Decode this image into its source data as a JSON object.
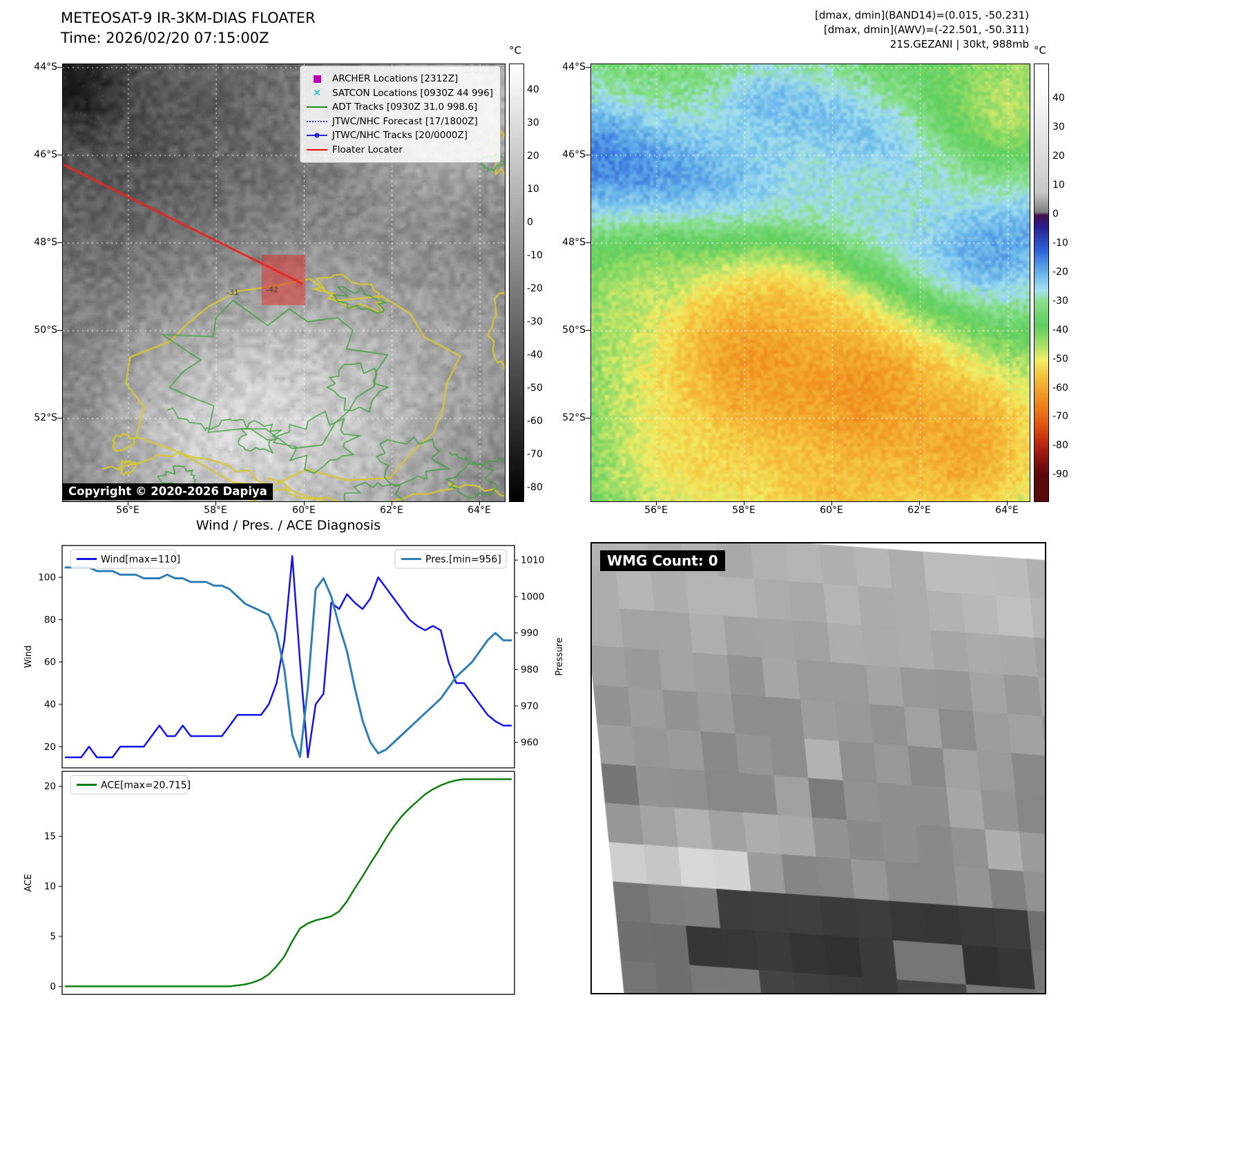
{
  "floater_panel": {
    "title": "METEOSAT-9 IR-3KM-DIAS FLOATER",
    "time_line": "Time: 2026/02/20 07:15:00Z",
    "watermark": "2026",
    "copyright": "Copyright © 2020-2026 Dapiya",
    "colorbar_unit": "°C",
    "colorbar_ticks": [
      40,
      30,
      20,
      10,
      0,
      -10,
      -20,
      -30,
      -40,
      -50,
      -60,
      -70,
      -80
    ],
    "lat_ticks": [
      "44°S",
      "46°S",
      "48°S",
      "50°S",
      "52°S"
    ],
    "lon_ticks": [
      "56°E",
      "58°E",
      "60°E",
      "62°E",
      "64°E"
    ],
    "contour_labels": [
      {
        "text": "-31"
      },
      {
        "text": "-42"
      }
    ],
    "legend_items": [
      {
        "label": "ARCHER Locations [2312Z]",
        "marker": "square",
        "color": "#bf00bf"
      },
      {
        "label": "SATCON Locations [0930Z 44 996]",
        "marker": "x",
        "color": "#00b4c8"
      },
      {
        "label": "ADT Tracks [0930Z 31.0 998.6]",
        "marker": "line",
        "color": "#1c8c1c"
      },
      {
        "label": "JTWC/NHC Forecast [17/1800Z]",
        "marker": "dotted",
        "color": "#2424ff"
      },
      {
        "label": "JTWC/NHC Tracks [20/0000Z]",
        "marker": "line-dot",
        "color": "#2424dd"
      },
      {
        "label": "Floater Locater",
        "marker": "line",
        "color": "#ff0000"
      }
    ]
  },
  "enhanced_panel": {
    "info_lines": [
      "[dmax, dmin](BAND14)=(0.015, -50.231)",
      "[dmax, dmin](AWV)=(-22.501, -50.311)",
      "21S.GEZANI | 30kt, 988mb"
    ],
    "colorbar_unit": "°C",
    "colorbar_ticks": [
      40,
      30,
      20,
      10,
      0,
      -10,
      -20,
      -30,
      -40,
      -50,
      -60,
      -70,
      -80,
      -90
    ],
    "lat_ticks": [
      "44°S",
      "46°S",
      "48°S",
      "50°S",
      "52°S"
    ],
    "lon_ticks": [
      "56°E",
      "58°E",
      "60°E",
      "62°E",
      "64°E"
    ]
  },
  "wmg_panel": {
    "count_label": "WMG Count: 0"
  },
  "chart_data": {
    "title": "Wind / Pres. / ACE Diagnosis",
    "charts": [
      {
        "type": "line",
        "xlabel": "",
        "ylabel_left": "Wind",
        "ylabel_right": "Pressure",
        "ylim_left": [
          10,
          115
        ],
        "ylim_right": [
          953,
          1014
        ],
        "yticks_left": [
          20,
          40,
          60,
          80,
          100
        ],
        "yticks_right": [
          960,
          970,
          980,
          990,
          1000,
          1010
        ],
        "series": [
          {
            "name": "Wind[max=110]",
            "axis": "left",
            "color": "#1414e6",
            "legend_pos": "tl",
            "values": [
              15,
              15,
              15,
              20,
              15,
              15,
              15,
              20,
              20,
              20,
              20,
              25,
              30,
              25,
              25,
              30,
              25,
              25,
              25,
              25,
              25,
              30,
              35,
              35,
              35,
              35,
              40,
              50,
              70,
              110,
              60,
              15,
              40,
              45,
              88,
              85,
              92,
              88,
              85,
              90,
              100,
              95,
              90,
              85,
              80,
              77,
              75,
              77,
              75,
              60,
              50,
              50,
              45,
              40,
              35,
              32,
              30,
              30
            ]
          },
          {
            "name": "Pres.[min=956]",
            "axis": "right",
            "color": "#2e7fb5",
            "legend_pos": "tr",
            "values": [
              1008,
              1008,
              1008,
              1008,
              1007,
              1007,
              1007,
              1006,
              1006,
              1006,
              1005,
              1005,
              1005,
              1006,
              1005,
              1005,
              1004,
              1004,
              1004,
              1003,
              1003,
              1002,
              1000,
              998,
              997,
              996,
              995,
              990,
              980,
              962,
              956,
              975,
              1002,
              1005,
              1000,
              992,
              985,
              975,
              966,
              960,
              957,
              958,
              960,
              962,
              964,
              966,
              968,
              970,
              972,
              975,
              978,
              980,
              982,
              985,
              988,
              990,
              988,
              988
            ]
          }
        ]
      },
      {
        "type": "line",
        "xlabel": "",
        "ylabel_left": "ACE",
        "ylim_left": [
          -0.8,
          21.5
        ],
        "yticks_left": [
          0,
          5,
          10,
          15,
          20
        ],
        "series": [
          {
            "name": "ACE[max=20.715]",
            "axis": "left",
            "color": "#107f10",
            "legend_pos": "tl",
            "values": [
              0,
              0,
              0,
              0,
              0,
              0,
              0,
              0,
              0,
              0,
              0,
              0,
              0,
              0,
              0,
              0,
              0,
              0,
              0,
              0,
              0,
              0,
              0.1,
              0.2,
              0.4,
              0.7,
              1.2,
              2,
              3,
              4.5,
              5.8,
              6.3,
              6.6,
              6.8,
              7,
              7.5,
              8.5,
              9.8,
              11,
              12.3,
              13.5,
              14.8,
              16,
              17,
              17.8,
              18.5,
              19.2,
              19.7,
              20.1,
              20.4,
              20.6,
              20.715,
              20.715,
              20.715,
              20.715,
              20.715,
              20.715,
              20.715
            ]
          }
        ]
      }
    ]
  }
}
